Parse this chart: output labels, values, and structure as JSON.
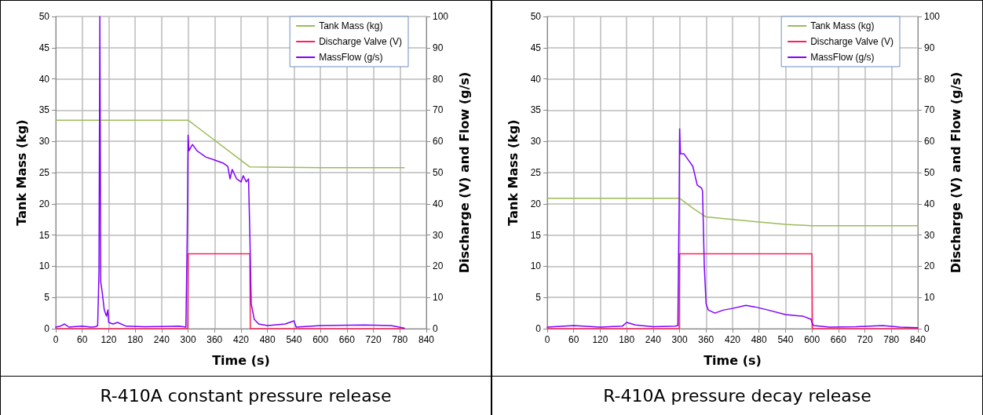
{
  "chart_data": [
    {
      "type": "line",
      "title": "R-410A constant pressure release",
      "xlabel": "Time (s)",
      "ylabel": "Tank Mass (kg)",
      "y2label": "Discharge (V) and Flow (g/s)",
      "xlim": [
        0,
        840
      ],
      "xticks": [
        0,
        60,
        120,
        180,
        240,
        300,
        360,
        420,
        480,
        540,
        600,
        660,
        720,
        780,
        840
      ],
      "ylim": [
        0,
        50
      ],
      "yticks": [
        0,
        5,
        10,
        15,
        20,
        25,
        30,
        35,
        40,
        45,
        50
      ],
      "y2lim": [
        0,
        100
      ],
      "y2ticks": [
        0,
        10,
        20,
        30,
        40,
        50,
        60,
        70,
        80,
        90,
        100
      ],
      "grid": true,
      "legend": "top right",
      "marker": "none",
      "line_style": "solid",
      "series": [
        {
          "name": "Tank Mass (kg)",
          "color": "#9bbb59",
          "x": [
            0,
            300,
            440,
            600,
            790
          ],
          "values": [
            33.4,
            33.4,
            25.9,
            25.8,
            25.8
          ]
        },
        {
          "name": "Discharge Valve (V)",
          "color": "#ff1f5a",
          "axis": "y2",
          "x": [
            0,
            299,
            300,
            440,
            441,
            790
          ],
          "values": [
            0,
            0,
            24,
            24,
            0,
            0
          ]
        },
        {
          "name": "MassFlow (g/s)",
          "color": "#8000ff",
          "axis": "y2",
          "x": [
            0,
            10,
            20,
            30,
            40,
            60,
            80,
            90,
            95,
            98,
            100,
            102,
            105,
            110,
            115,
            118,
            120,
            130,
            140,
            160,
            200,
            240,
            280,
            295,
            298,
            300,
            302,
            310,
            320,
            340,
            360,
            380,
            390,
            395,
            400,
            410,
            420,
            425,
            432,
            437,
            440,
            443,
            450,
            460,
            480,
            520,
            540,
            545,
            600,
            700,
            760,
            790
          ],
          "values": [
            0.5,
            0.8,
            1.5,
            0.5,
            0.6,
            0.8,
            0.5,
            0.6,
            1,
            18,
            100,
            15,
            12,
            6,
            4,
            6,
            2,
            1.5,
            2,
            0.8,
            0.6,
            0.7,
            0.8,
            0.5,
            30,
            62,
            57,
            59,
            57,
            55,
            54,
            53,
            52,
            48,
            51,
            48,
            47,
            49,
            47,
            48,
            30,
            8,
            3,
            1.5,
            1,
            1.5,
            2.5,
            0.5,
            1,
            1.2,
            1,
            0.2
          ]
        }
      ]
    },
    {
      "type": "line",
      "title": "R-410A pressure decay release",
      "xlabel": "Time (s)",
      "ylabel": "Tank Mass (kg)",
      "y2label": "Discharge (V) and Flow (g/s)",
      "xlim": [
        0,
        840
      ],
      "xticks": [
        0,
        60,
        120,
        180,
        240,
        300,
        360,
        420,
        480,
        540,
        600,
        660,
        720,
        780,
        840
      ],
      "ylim": [
        0,
        50
      ],
      "yticks": [
        0,
        5,
        10,
        15,
        20,
        25,
        30,
        35,
        40,
        45,
        50
      ],
      "y2lim": [
        0,
        100
      ],
      "y2ticks": [
        0,
        10,
        20,
        30,
        40,
        50,
        60,
        70,
        80,
        90,
        100
      ],
      "grid": true,
      "legend": "top right",
      "marker": "none",
      "line_style": "solid",
      "series": [
        {
          "name": "Tank Mass (kg)",
          "color": "#9bbb59",
          "x": [
            0,
            300,
            330,
            360,
            420,
            480,
            540,
            600,
            840
          ],
          "values": [
            20.9,
            20.9,
            19.3,
            17.9,
            17.5,
            17.1,
            16.7,
            16.5,
            16.5
          ]
        },
        {
          "name": "Discharge Valve (V)",
          "color": "#ff1f5a",
          "axis": "y2",
          "x": [
            0,
            299,
            300,
            600,
            601,
            840
          ],
          "values": [
            0,
            0,
            24,
            24,
            0,
            0
          ]
        },
        {
          "name": "MassFlow (g/s)",
          "color": "#8000ff",
          "axis": "y2",
          "x": [
            0,
            60,
            120,
            170,
            180,
            200,
            240,
            290,
            296,
            299,
            300,
            302,
            310,
            320,
            330,
            340,
            350,
            352,
            356,
            360,
            365,
            380,
            400,
            420,
            450,
            470,
            500,
            540,
            580,
            598,
            600,
            604,
            640,
            700,
            760,
            800,
            840
          ],
          "values": [
            0.5,
            1,
            0.5,
            0.8,
            2,
            1.2,
            0.6,
            0.8,
            1,
            40,
            64,
            56,
            56,
            54,
            52,
            46,
            45,
            44,
            20,
            8,
            6,
            5,
            6,
            6.5,
            7.5,
            7,
            6,
            4.5,
            4,
            3,
            2,
            1,
            0.5,
            0.6,
            1,
            0.5,
            0.3
          ]
        }
      ]
    }
  ]
}
